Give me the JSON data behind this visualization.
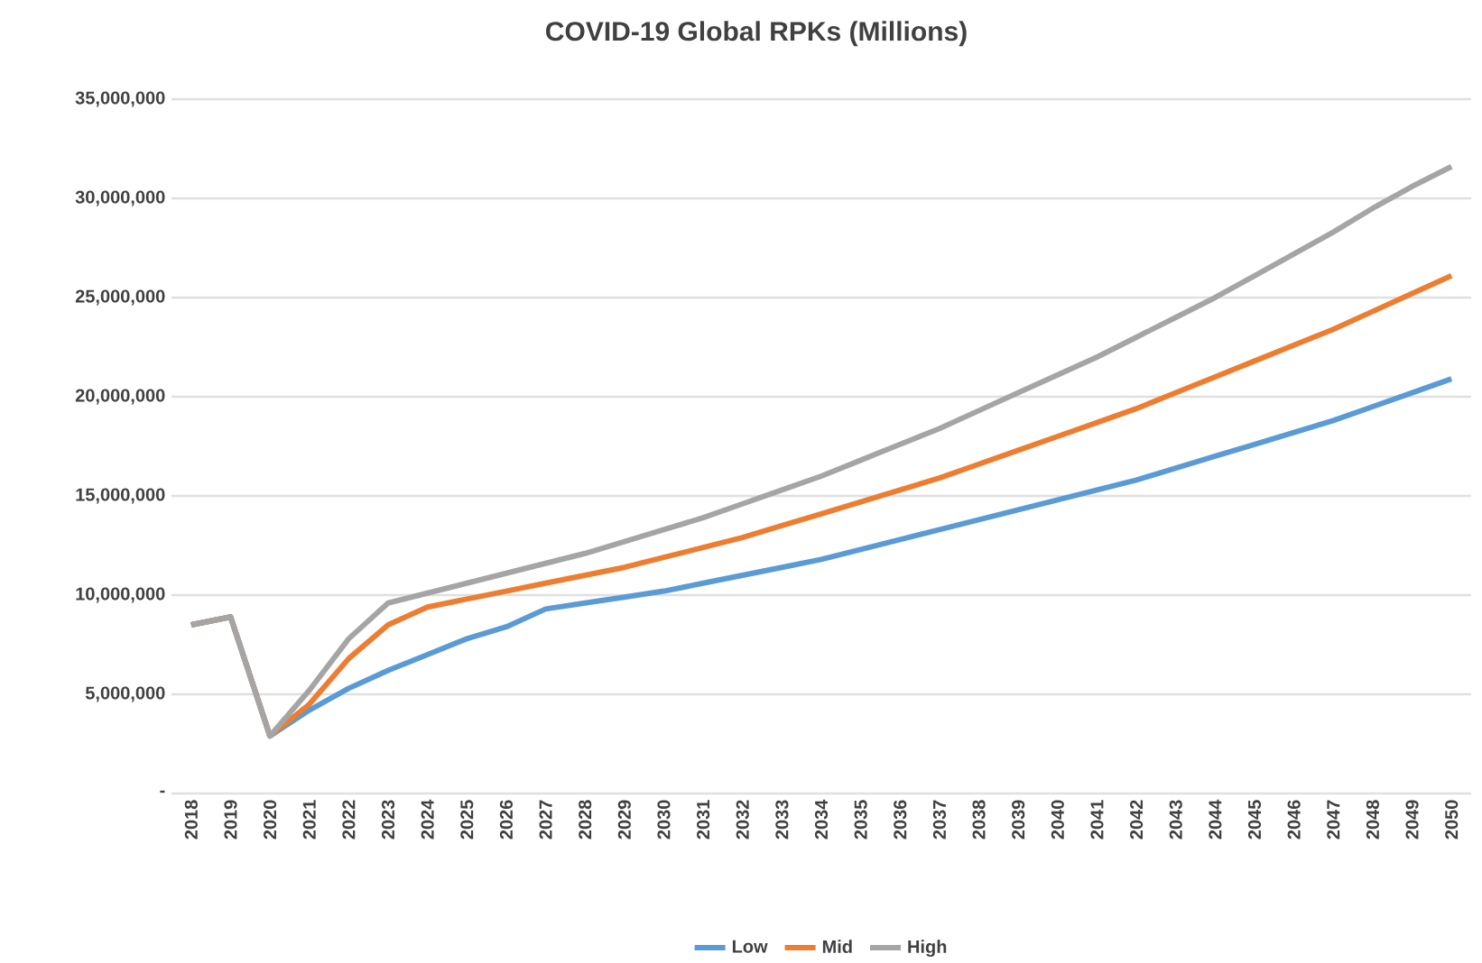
{
  "chart_data": {
    "type": "line",
    "title": "COVID-19 Global RPKs (Millions)",
    "categories": [
      "2018",
      "2019",
      "2020",
      "2021",
      "2022",
      "2023",
      "2024",
      "2025",
      "2026",
      "2027",
      "2028",
      "2029",
      "2030",
      "2031",
      "2032",
      "2033",
      "2034",
      "2035",
      "2036",
      "2037",
      "2038",
      "2039",
      "2040",
      "2041",
      "2042",
      "2043",
      "2044",
      "2045",
      "2046",
      "2047",
      "2048",
      "2049",
      "2050"
    ],
    "series": [
      {
        "name": "Low",
        "color": "#5b9bd5",
        "values": [
          8500000,
          8900000,
          2900000,
          4200000,
          5300000,
          6200000,
          7000000,
          7800000,
          8400000,
          9300000,
          9600000,
          9900000,
          10200000,
          10600000,
          11000000,
          11400000,
          11800000,
          12300000,
          12800000,
          13300000,
          13800000,
          14300000,
          14800000,
          15300000,
          15800000,
          16400000,
          17000000,
          17600000,
          18200000,
          18800000,
          19500000,
          20200000,
          20900000
        ]
      },
      {
        "name": "Mid",
        "color": "#ed7d31",
        "values": [
          8500000,
          8900000,
          2900000,
          4500000,
          6800000,
          8500000,
          9400000,
          9800000,
          10200000,
          10600000,
          11000000,
          11400000,
          11900000,
          12400000,
          12900000,
          13500000,
          14100000,
          14700000,
          15300000,
          15900000,
          16600000,
          17300000,
          18000000,
          18700000,
          19400000,
          20200000,
          21000000,
          21800000,
          22600000,
          23400000,
          24300000,
          25200000,
          26100000
        ]
      },
      {
        "name": "High",
        "color": "#a5a5a5",
        "values": [
          8500000,
          8900000,
          2900000,
          5200000,
          7800000,
          9600000,
          10100000,
          10600000,
          11100000,
          11600000,
          12100000,
          12700000,
          13300000,
          13900000,
          14600000,
          15300000,
          16000000,
          16800000,
          17600000,
          18400000,
          19300000,
          20200000,
          21100000,
          22000000,
          23000000,
          24000000,
          25000000,
          26100000,
          27200000,
          28300000,
          29500000,
          30600000,
          31600000
        ]
      }
    ],
    "ylim": [
      0,
      35000000
    ],
    "yticks": [
      {
        "value": 0,
        "label": "-"
      },
      {
        "value": 5000000,
        "label": "5,000,000"
      },
      {
        "value": 10000000,
        "label": "10,000,000"
      },
      {
        "value": 15000000,
        "label": "15,000,000"
      },
      {
        "value": 20000000,
        "label": "20,000,000"
      },
      {
        "value": 25000000,
        "label": "25,000,000"
      },
      {
        "value": 30000000,
        "label": "30,000,000"
      },
      {
        "value": 35000000,
        "label": "35,000,000"
      }
    ],
    "grid": "y",
    "legend": "bottom",
    "marker": "none",
    "line_style": "solid"
  }
}
